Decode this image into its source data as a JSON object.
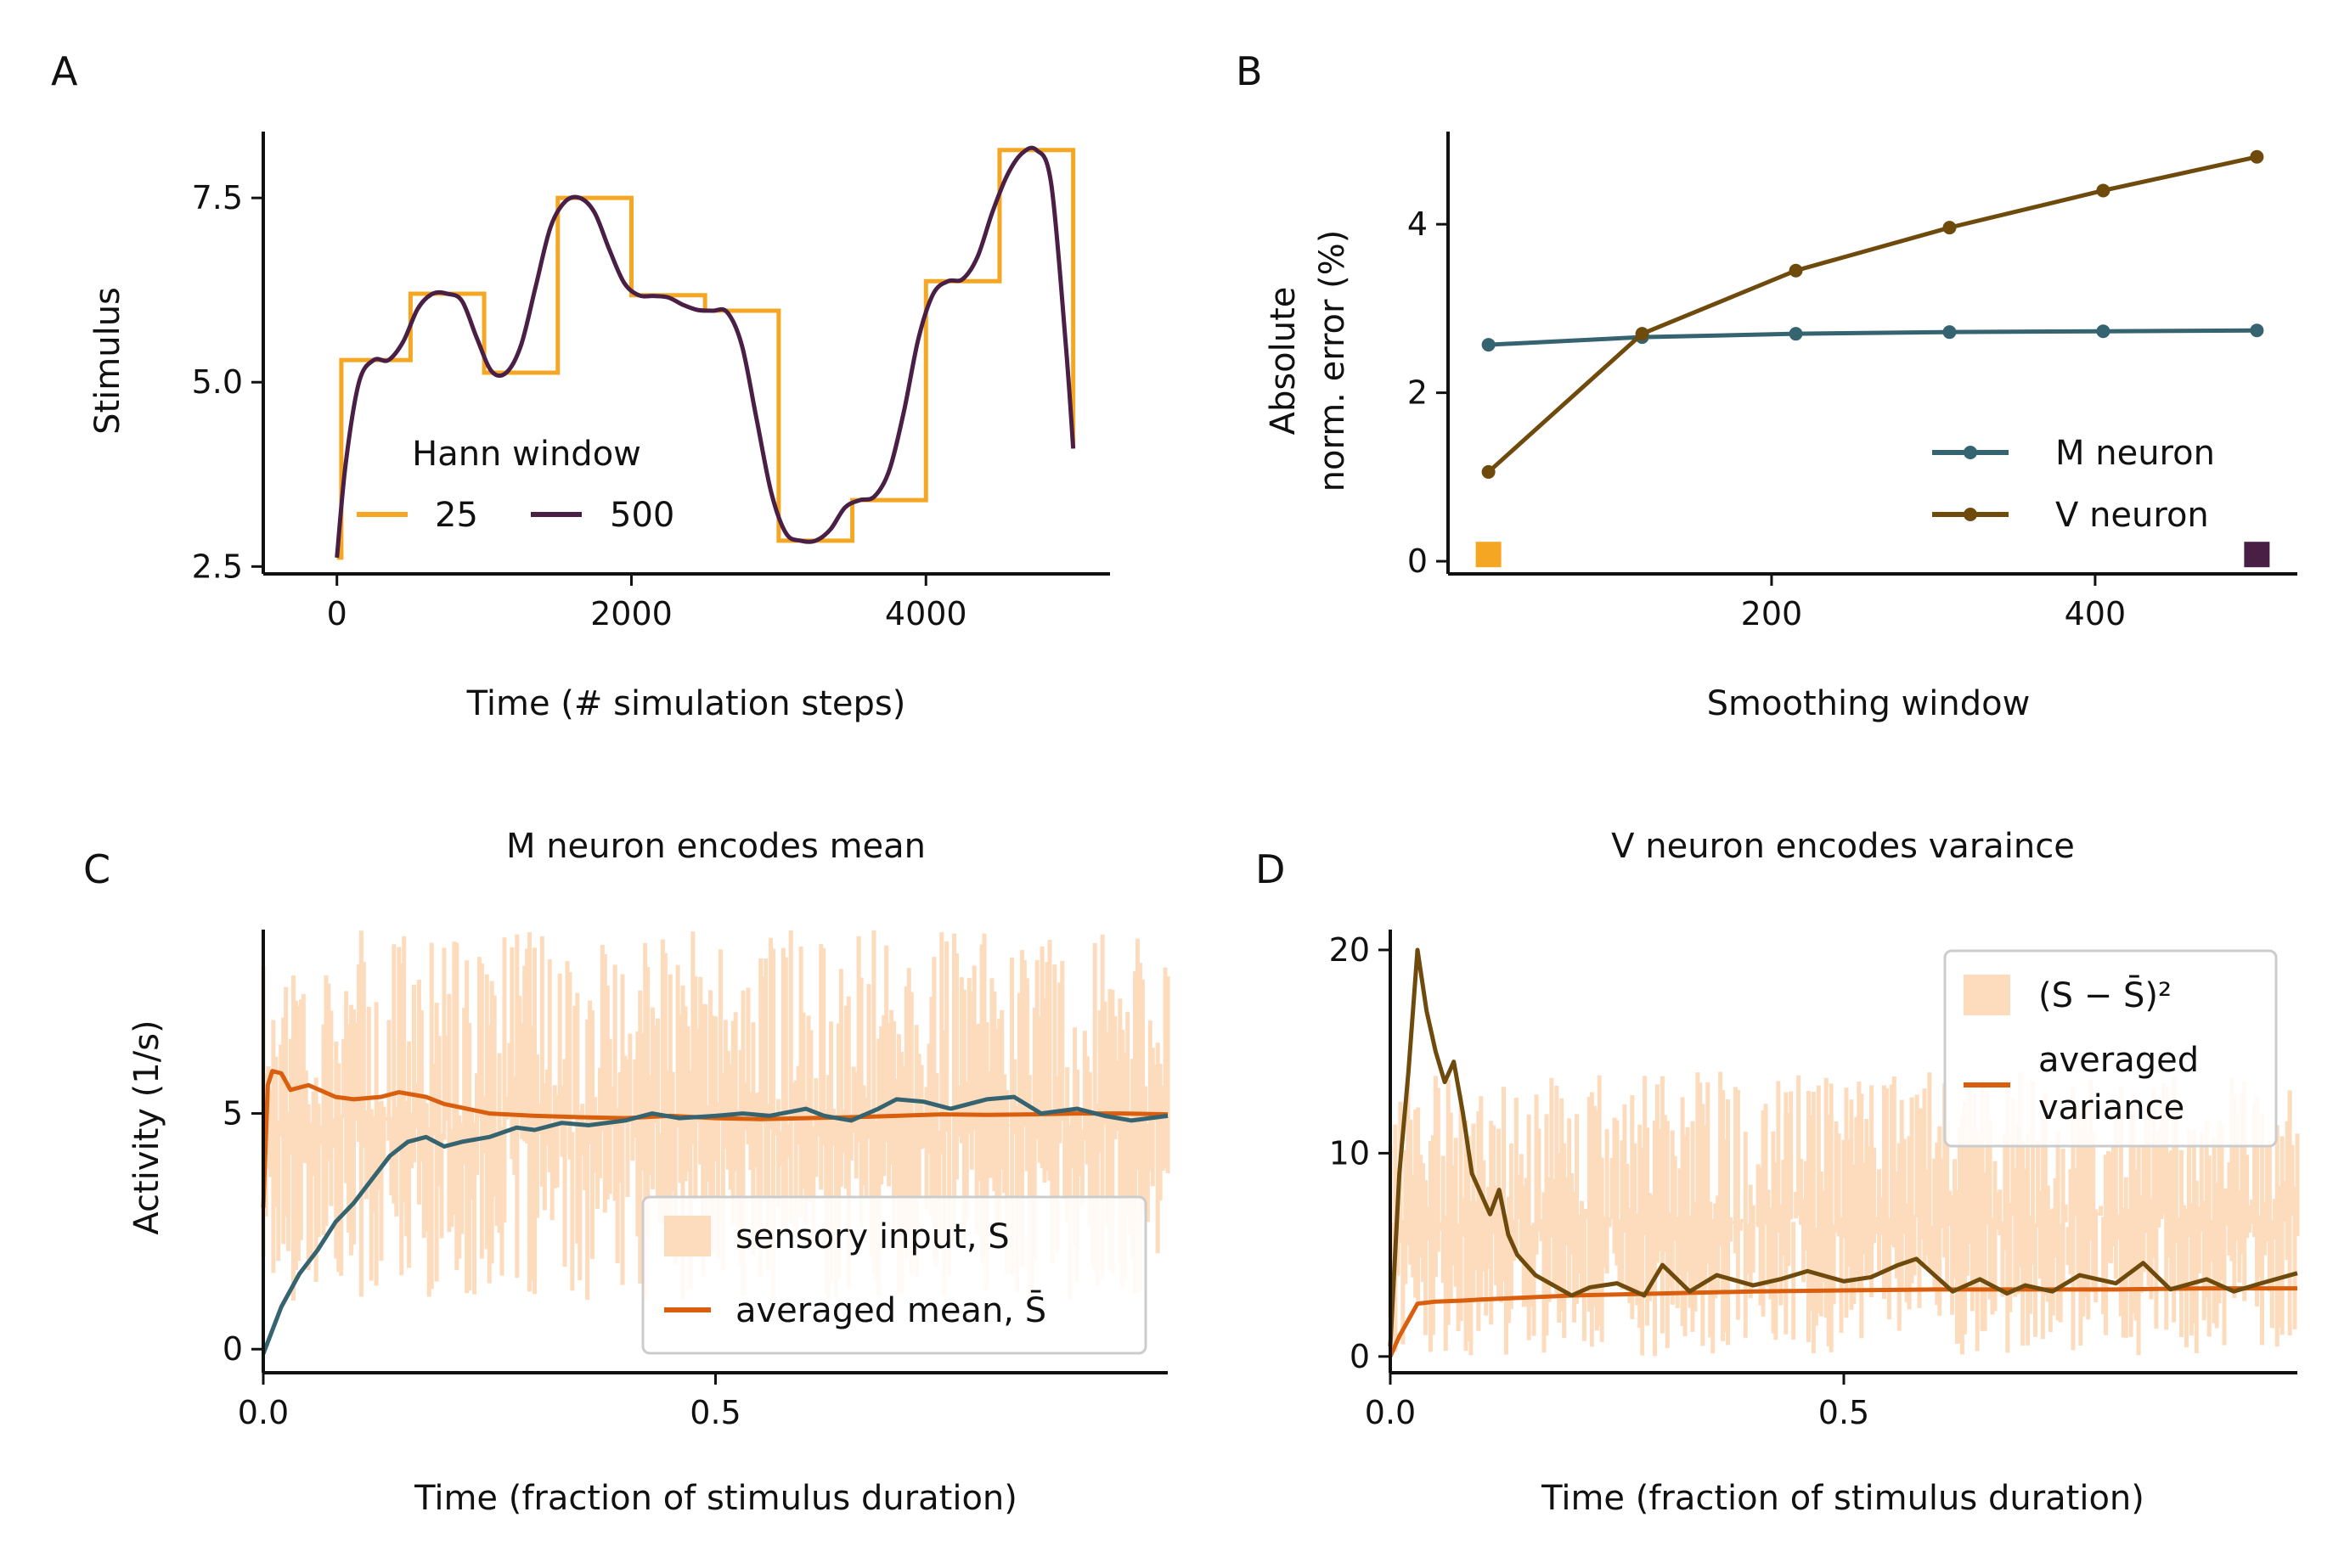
{
  "panels": {
    "A": {
      "letter": "A"
    },
    "B": {
      "letter": "B"
    },
    "C": {
      "letter": "C"
    },
    "D": {
      "letter": "D"
    }
  },
  "chart_data": [
    {
      "id": "A",
      "type": "line",
      "title": "",
      "xlabel": "Time (# simulation steps)",
      "ylabel": "Stimulus",
      "xlim": [
        -500,
        5250
      ],
      "ylim": [
        2.4,
        8.4
      ],
      "xticks": [
        0,
        2000,
        4000
      ],
      "xtick_labels": [
        "0",
        "2000",
        "4000"
      ],
      "yticks": [
        2.5,
        5.0,
        7.5
      ],
      "ytick_labels": [
        "2.5",
        "5.0",
        "7.5"
      ],
      "legend": {
        "title": "Hann window",
        "placement": "lower-center",
        "entries": [
          "25",
          "500"
        ]
      },
      "series": [
        {
          "name": "25",
          "color": "#F5A623",
          "kind": "step",
          "x": [
            0,
            30,
            500,
            1000,
            1500,
            2000,
            2500,
            3000,
            3500,
            4000,
            4500,
            5000
          ],
          "y": [
            2.62,
            5.3,
            6.2,
            5.13,
            7.5,
            6.18,
            5.97,
            2.85,
            3.4,
            6.37,
            8.15,
            4.1
          ]
        },
        {
          "name": "500",
          "color": "#4A1F45",
          "kind": "smooth",
          "x": [
            0,
            60,
            150,
            250,
            350,
            450,
            550,
            650,
            750,
            850,
            950,
            1050,
            1150,
            1250,
            1350,
            1450,
            1550,
            1650,
            1750,
            1850,
            1950,
            2050,
            2150,
            2250,
            2350,
            2450,
            2550,
            2650,
            2750,
            2850,
            2950,
            3050,
            3150,
            3250,
            3350,
            3450,
            3550,
            3650,
            3750,
            3850,
            3950,
            4050,
            4150,
            4250,
            4350,
            4450,
            4550,
            4650,
            4750,
            4850,
            4950,
            5000
          ],
          "y": [
            2.62,
            3.9,
            5.0,
            5.3,
            5.3,
            5.55,
            6.0,
            6.2,
            6.2,
            6.1,
            5.6,
            5.15,
            5.13,
            5.5,
            6.3,
            7.1,
            7.45,
            7.5,
            7.3,
            6.8,
            6.35,
            6.18,
            6.17,
            6.15,
            6.05,
            5.98,
            5.97,
            5.95,
            5.5,
            4.5,
            3.5,
            2.95,
            2.85,
            2.85,
            3.0,
            3.3,
            3.4,
            3.45,
            3.8,
            4.6,
            5.6,
            6.2,
            6.37,
            6.4,
            6.7,
            7.3,
            7.8,
            8.1,
            8.15,
            7.7,
            5.5,
            4.1
          ]
        }
      ]
    },
    {
      "id": "B",
      "type": "line",
      "title": "",
      "xlabel": "Smoothing window",
      "ylabel": "Absolute\nnorm. error (%)",
      "ylabel_lines": [
        "Absolute",
        "norm. error (%)"
      ],
      "xlim": [
        0,
        525
      ],
      "ylim": [
        -0.15,
        5.1
      ],
      "xticks": [
        200,
        400
      ],
      "xtick_labels": [
        "200",
        "400"
      ],
      "yticks": [
        0,
        2,
        4
      ],
      "ytick_labels": [
        "0",
        "2",
        "4"
      ],
      "legend": {
        "placement": "lower-right",
        "entries": [
          "M neuron",
          "V neuron"
        ]
      },
      "series": [
        {
          "name": "M neuron",
          "color": "#356470",
          "x": [
            25,
            120,
            215,
            310,
            405,
            500
          ],
          "y": [
            2.57,
            2.66,
            2.7,
            2.72,
            2.73,
            2.74
          ]
        },
        {
          "name": "V neuron",
          "color": "#6E4A0C",
          "x": [
            25,
            120,
            215,
            310,
            405,
            500
          ],
          "y": [
            1.06,
            2.7,
            3.45,
            3.96,
            4.4,
            4.8
          ]
        }
      ],
      "markers": [
        {
          "x": 25,
          "y": 0.08,
          "color": "#F5A623"
        },
        {
          "x": 500,
          "y": 0.08,
          "color": "#4A1F45"
        }
      ]
    },
    {
      "id": "C",
      "type": "line",
      "title": "M neuron encodes mean",
      "xlabel": "Time (fraction of stimulus duration)",
      "ylabel": "Activity (1/s)",
      "xlim": [
        0,
        1
      ],
      "ylim": [
        -0.5,
        8.9
      ],
      "xticks": [
        0.0,
        0.5
      ],
      "xtick_labels": [
        "0.0",
        "0.5"
      ],
      "yticks": [
        0,
        5
      ],
      "ytick_labels": [
        "0",
        "5"
      ],
      "legend": {
        "placement": "lower-right",
        "entries": [
          "sensory input, S",
          "averaged mean, S̄"
        ]
      },
      "noise_band": {
        "name": "sensory input, S",
        "color": "#FDDCBE",
        "low": 1.0,
        "high": 8.9
      },
      "series": [
        {
          "name": "averaged mean, S̄",
          "color": "#D95F0E",
          "x": [
            0,
            0.005,
            0.01,
            0.02,
            0.03,
            0.05,
            0.08,
            0.1,
            0.13,
            0.15,
            0.18,
            0.2,
            0.25,
            0.3,
            0.35,
            0.4,
            0.45,
            0.5,
            0.55,
            0.6,
            0.65,
            0.7,
            0.75,
            0.8,
            0.85,
            0.9,
            0.95,
            1.0
          ],
          "y": [
            3.0,
            5.6,
            5.9,
            5.85,
            5.5,
            5.6,
            5.35,
            5.3,
            5.35,
            5.45,
            5.35,
            5.2,
            5.0,
            4.95,
            4.92,
            4.9,
            4.95,
            4.9,
            4.88,
            4.9,
            4.92,
            4.95,
            4.98,
            4.97,
            4.98,
            5.0,
            5.0,
            4.98
          ]
        },
        {
          "name": "",
          "color": "#356470",
          "x": [
            0,
            0.02,
            0.04,
            0.06,
            0.08,
            0.1,
            0.12,
            0.14,
            0.16,
            0.18,
            0.2,
            0.22,
            0.25,
            0.28,
            0.3,
            0.33,
            0.36,
            0.4,
            0.43,
            0.46,
            0.5,
            0.53,
            0.56,
            0.6,
            0.62,
            0.65,
            0.68,
            0.7,
            0.73,
            0.76,
            0.8,
            0.83,
            0.86,
            0.9,
            0.93,
            0.96,
            1.0
          ],
          "y": [
            -0.1,
            0.9,
            1.6,
            2.1,
            2.7,
            3.1,
            3.6,
            4.1,
            4.4,
            4.5,
            4.3,
            4.4,
            4.5,
            4.7,
            4.65,
            4.8,
            4.75,
            4.85,
            5.0,
            4.9,
            4.95,
            5.0,
            4.95,
            5.1,
            4.95,
            4.85,
            5.1,
            5.3,
            5.25,
            5.1,
            5.3,
            5.35,
            5.0,
            5.1,
            4.95,
            4.85,
            4.95
          ]
        }
      ]
    },
    {
      "id": "D",
      "type": "line",
      "title": "V neuron encodes varaince",
      "xlabel": "Time (fraction of stimulus duration)",
      "ylabel": "",
      "xlim": [
        0,
        1
      ],
      "ylim": [
        -0.8,
        21
      ],
      "xticks": [
        0.0,
        0.5
      ],
      "xtick_labels": [
        "0.0",
        "0.5"
      ],
      "yticks": [
        0,
        10,
        20
      ],
      "ytick_labels": [
        "0",
        "10",
        "20"
      ],
      "legend": {
        "placement": "upper-right",
        "entries": [
          "(S − S̄)²",
          "averaged\nvariance"
        ],
        "entry_lines": [
          [
            "(S − S̄)²"
          ],
          [
            "averaged",
            "variance"
          ]
        ]
      },
      "noise_band": {
        "name": "(S − S̄)²",
        "color": "#FDDCBE",
        "low": 0,
        "high": 14
      },
      "series": [
        {
          "name": "averaged variance",
          "color": "#D95F0E",
          "x": [
            0,
            0.01,
            0.02,
            0.03,
            0.05,
            0.08,
            0.1,
            0.15,
            0.2,
            0.3,
            0.4,
            0.5,
            0.6,
            0.7,
            0.8,
            0.9,
            1.0
          ],
          "y": [
            0,
            1.0,
            1.8,
            2.6,
            2.7,
            2.75,
            2.8,
            2.9,
            3.0,
            3.1,
            3.2,
            3.25,
            3.3,
            3.3,
            3.3,
            3.35,
            3.35
          ]
        },
        {
          "name": "",
          "color": "#6E4A0C",
          "x": [
            0,
            0.01,
            0.02,
            0.03,
            0.04,
            0.05,
            0.06,
            0.07,
            0.08,
            0.09,
            0.1,
            0.11,
            0.12,
            0.13,
            0.14,
            0.16,
            0.18,
            0.2,
            0.22,
            0.25,
            0.28,
            0.3,
            0.33,
            0.36,
            0.4,
            0.43,
            0.46,
            0.5,
            0.53,
            0.56,
            0.58,
            0.6,
            0.62,
            0.65,
            0.68,
            0.7,
            0.73,
            0.76,
            0.8,
            0.83,
            0.86,
            0.9,
            0.93,
            0.96,
            1.0
          ],
          "y": [
            0.5,
            9.0,
            14.0,
            20.0,
            17.0,
            15.0,
            13.5,
            14.5,
            12.0,
            9.0,
            8.0,
            7.0,
            8.2,
            6.0,
            5.0,
            4.0,
            3.5,
            3.0,
            3.4,
            3.6,
            3.0,
            4.5,
            3.2,
            4.0,
            3.5,
            3.8,
            4.2,
            3.7,
            3.9,
            4.5,
            4.8,
            4.0,
            3.2,
            3.8,
            3.1,
            3.5,
            3.2,
            4.0,
            3.6,
            4.6,
            3.3,
            3.8,
            3.2,
            3.6,
            4.1
          ]
        }
      ]
    }
  ]
}
